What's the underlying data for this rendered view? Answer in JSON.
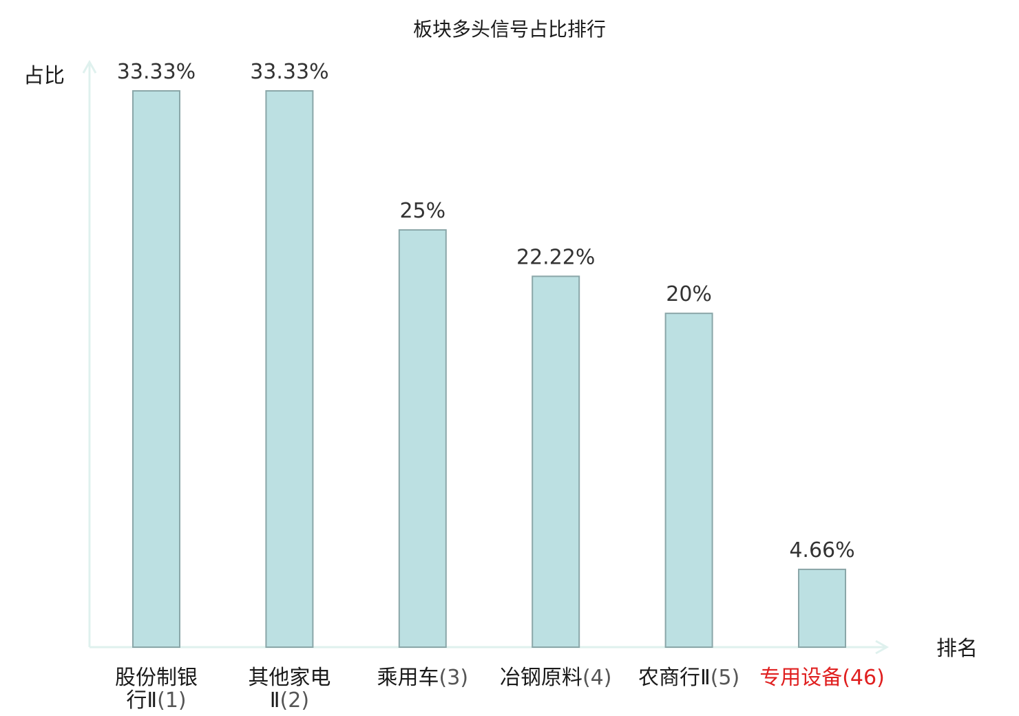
{
  "chart_data": {
    "type": "bar",
    "title": "板块多头信号占比排行",
    "ylabel": "占比",
    "xlabel": "排名",
    "ylim": [
      0,
      35
    ],
    "grid": false,
    "legend": "none",
    "categories": [
      {
        "name_lines": [
          "股份制银",
          "行Ⅱ"
        ],
        "rank": "(1)",
        "highlight": false
      },
      {
        "name_lines": [
          "其他家电",
          "Ⅱ"
        ],
        "rank": "(2)",
        "highlight": false
      },
      {
        "name_lines": [
          "乘用车"
        ],
        "rank": "(3)",
        "highlight": false
      },
      {
        "name_lines": [
          "冶钢原料"
        ],
        "rank": "(4)",
        "highlight": false
      },
      {
        "name_lines": [
          "农商行Ⅱ"
        ],
        "rank": "(5)",
        "highlight": false
      },
      {
        "name_lines": [
          "专用设备"
        ],
        "rank": "(46)",
        "highlight": true
      }
    ],
    "values": [
      33.33,
      33.33,
      25,
      22.22,
      20,
      4.66
    ],
    "value_labels": [
      "33.33%",
      "33.33%",
      "25%",
      "22.22%",
      "20%",
      "4.66%"
    ],
    "colors": {
      "bar_fill": "#bce0e2",
      "bar_stroke": "#8aa6a8",
      "axis": "#dff1ee",
      "highlight_text": "#e02020"
    }
  }
}
